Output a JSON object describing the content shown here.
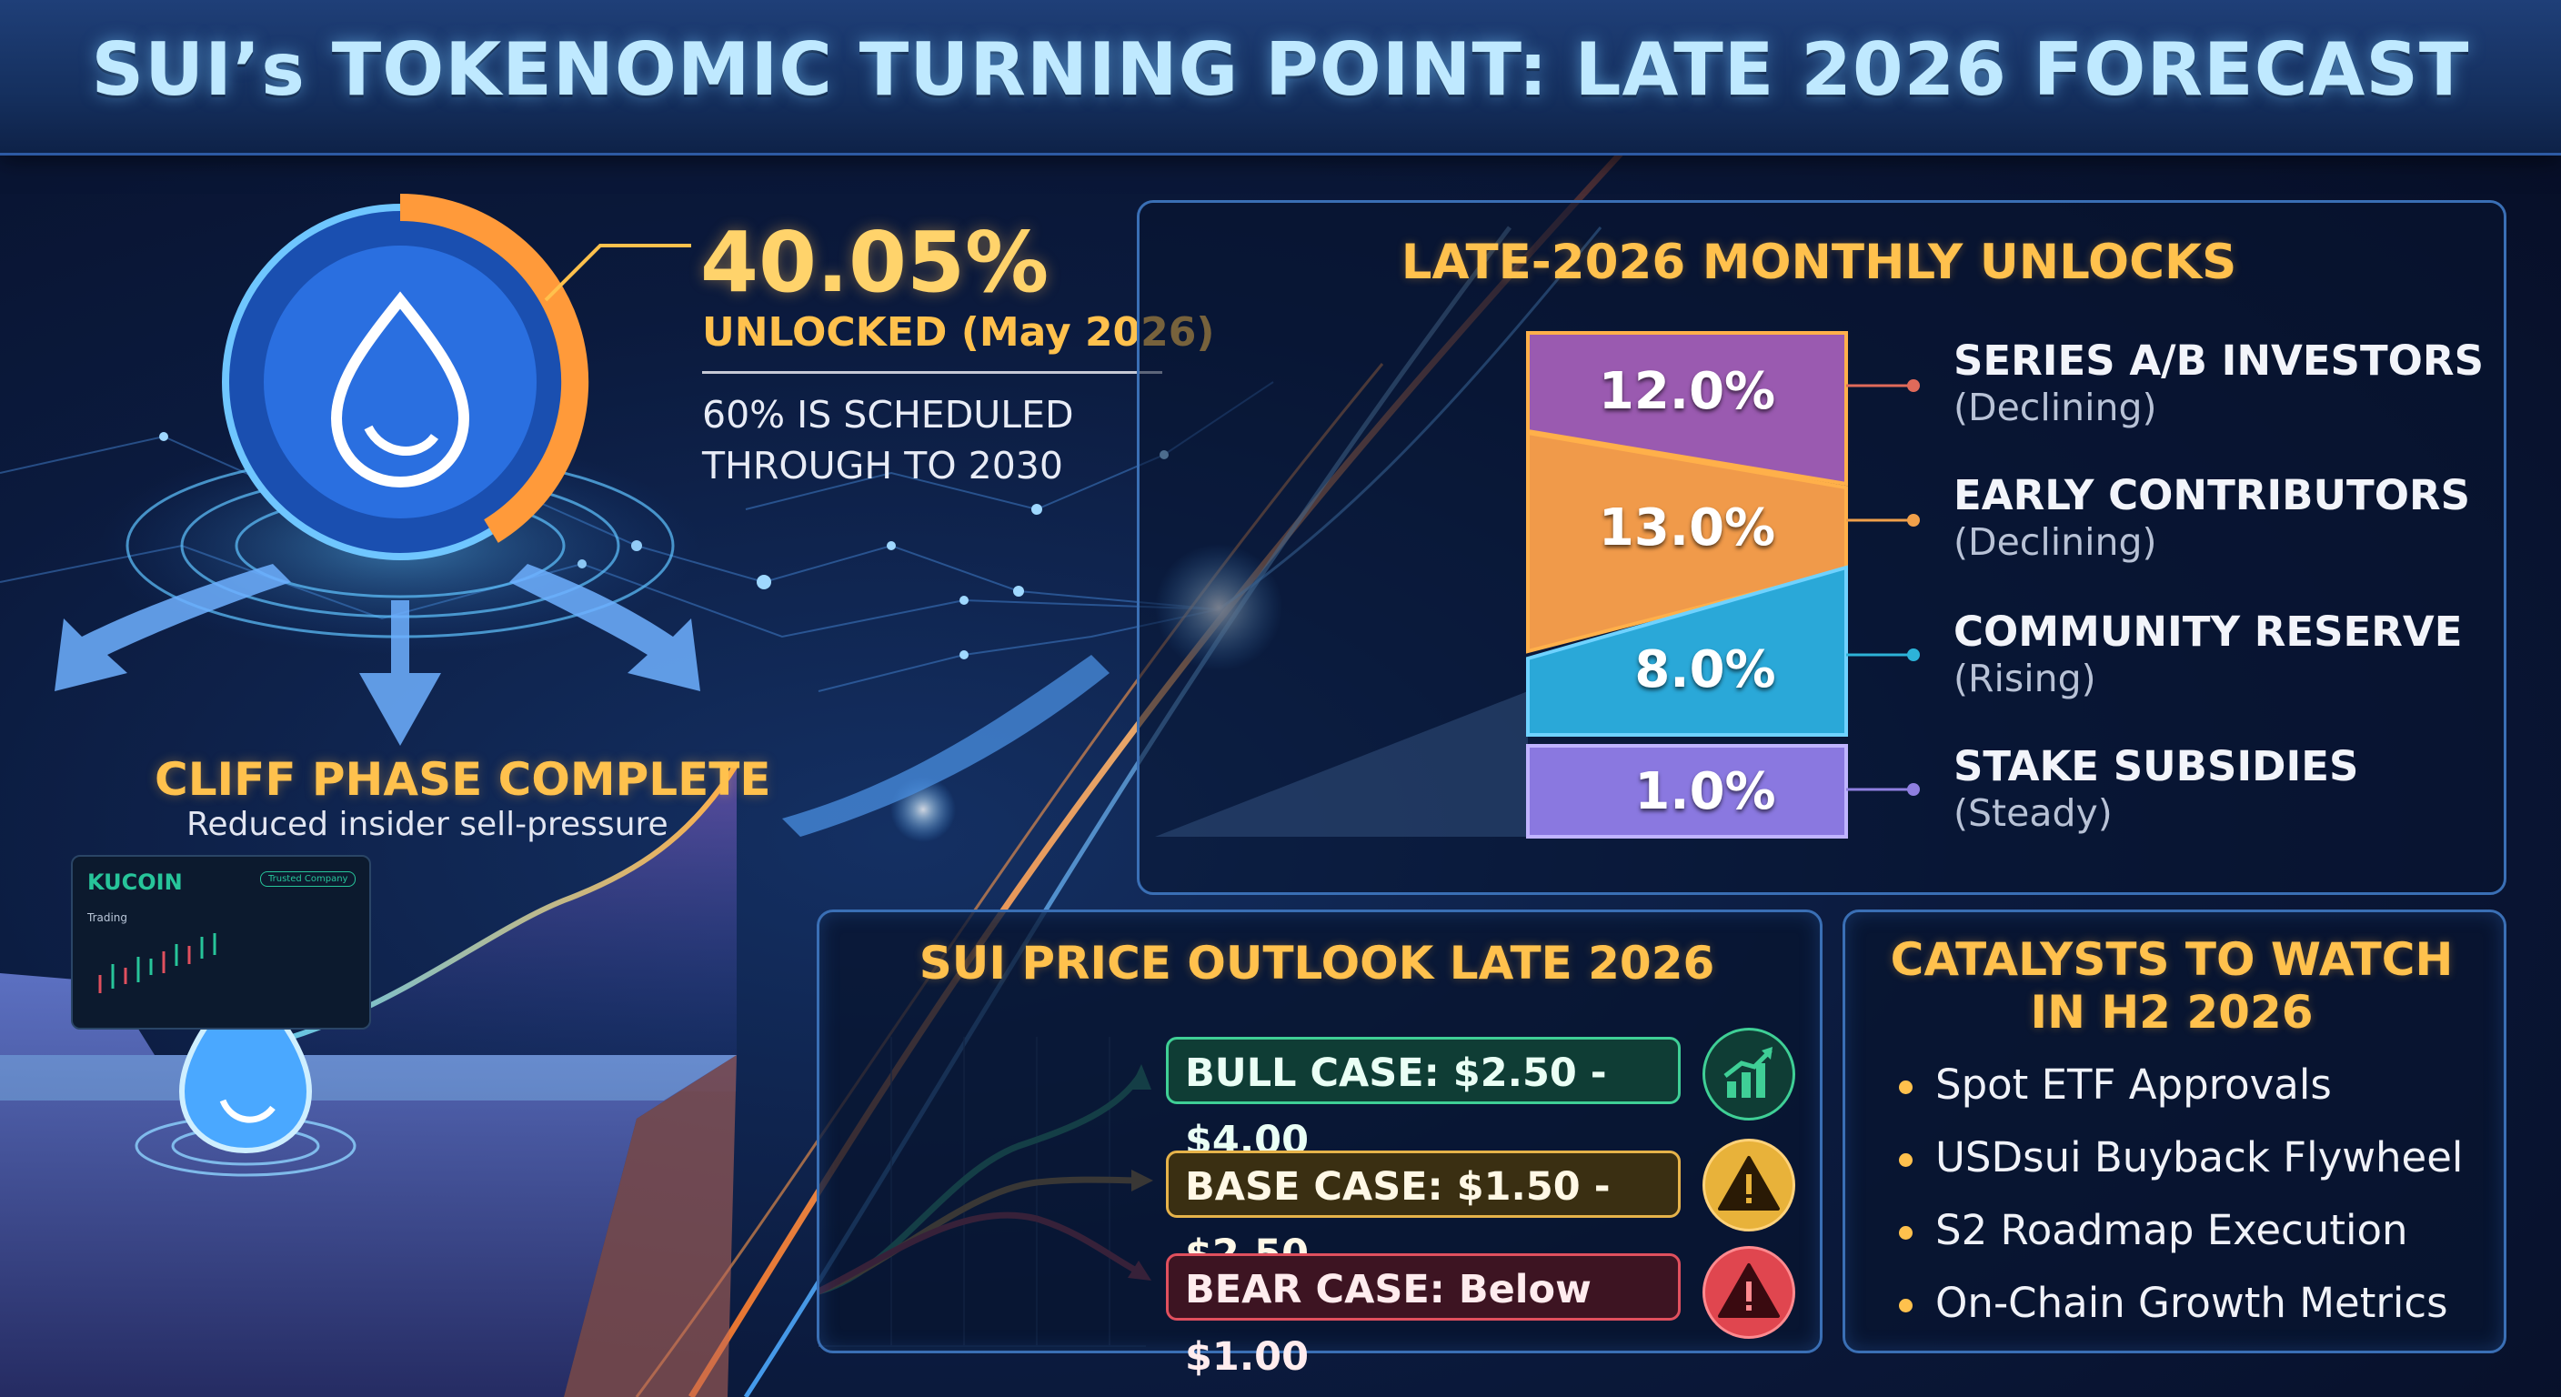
{
  "header": {
    "title": "SUI’s TOKENOMIC TURNING POINT: LATE 2026 FORECAST"
  },
  "hero": {
    "unlocked_pct": "40.05%",
    "unlocked_fraction": 0.4005,
    "unlocked_label": "UNLOCKED (May 2026)",
    "schedule_line1": "60% IS SCHEDULED",
    "schedule_line2": "THROUGH TO 2030",
    "cliff_title": "CLIFF PHASE COMPLETE",
    "cliff_subtitle": "Reduced insider sell-pressure"
  },
  "exchange": {
    "name": "KUCOIN",
    "pill": "Trusted Company",
    "trading": "Trading"
  },
  "unlocks": {
    "title": "LATE-2026 MONTHLY UNLOCKS",
    "segments": [
      {
        "value": "12.0%",
        "name": "SERIES A/B INVESTORS",
        "trend": "(Declining)",
        "color": "#8a5ab8"
      },
      {
        "value": "13.0%",
        "name": "EARLY CONTRIBUTORS",
        "trend": "(Declining)",
        "color": "#f0a04a"
      },
      {
        "value": "8.0%",
        "name": "COMMUNITY RESERVE",
        "trend": "(Rising)",
        "color": "#2db3d8"
      },
      {
        "value": "1.0%",
        "name": "STAKE SUBSIDIES",
        "trend": "(Steady)",
        "color": "#8f7fe0"
      }
    ]
  },
  "outlook": {
    "title": "SUI PRICE OUTLOOK LATE 2026",
    "bull": "BULL CASE: $2.50 - $4.00",
    "base": "BASE CASE: $1.50 - $2.50",
    "bear": "BEAR CASE: Below $1.00",
    "icons": {
      "bull": "bar-chart-up-icon",
      "base": "warning-icon",
      "bear": "alert-icon"
    }
  },
  "catalysts": {
    "title_line1": "CATALYSTS TO WATCH",
    "title_line2": "IN H2 2026",
    "items": [
      "Spot ETF Approvals",
      "USDsui Buyback Flywheel",
      "S2 Roadmap Execution",
      "On-Chain Growth Metrics"
    ]
  }
}
